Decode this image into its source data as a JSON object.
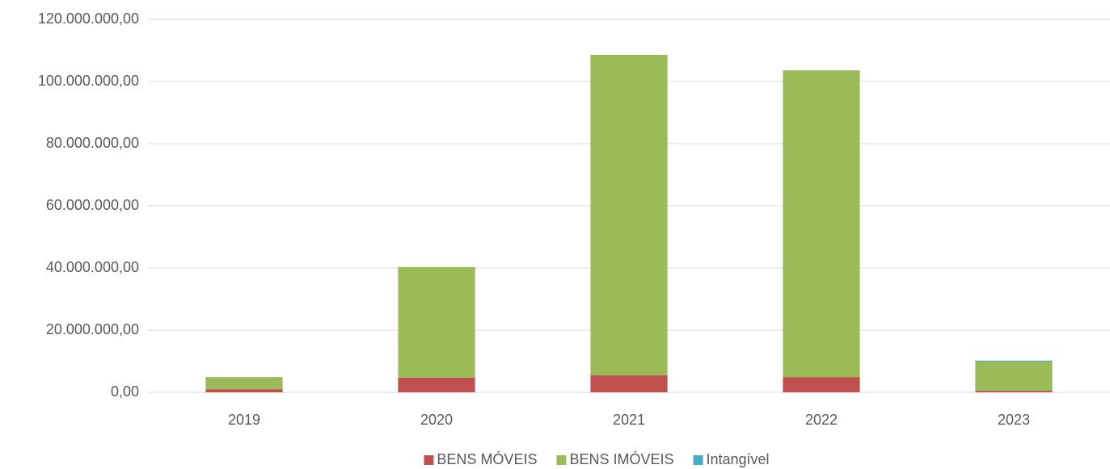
{
  "chart_data": {
    "type": "stacked_bar",
    "categories": [
      "2019",
      "2020",
      "2021",
      "2022",
      "2023"
    ],
    "series": [
      {
        "name": "BENS MÓVEIS",
        "color": "#c0504d",
        "values": [
          1000000,
          4700000,
          5500000,
          4900000,
          500000
        ]
      },
      {
        "name": "BENS IMÓVEIS",
        "color": "#9bbb59",
        "values": [
          3900000,
          35600000,
          103100000,
          98700000,
          9400000
        ]
      },
      {
        "name": "Intangível",
        "color": "#4bacc6",
        "values": [
          0,
          0,
          0,
          0,
          300000
        ]
      }
    ],
    "ylim": [
      0,
      120000000
    ],
    "yticks": [
      {
        "value": 0,
        "label": "0,00"
      },
      {
        "value": 20000000,
        "label": "20.000.000,00"
      },
      {
        "value": 40000000,
        "label": "40.000.000,00"
      },
      {
        "value": 60000000,
        "label": "60.000.000,00"
      },
      {
        "value": 80000000,
        "label": "80.000.000,00"
      },
      {
        "value": 100000000,
        "label": "100.000.000,00"
      },
      {
        "value": 120000000,
        "label": "120.000.000,00"
      }
    ],
    "grid": true,
    "legend": "bottom"
  }
}
